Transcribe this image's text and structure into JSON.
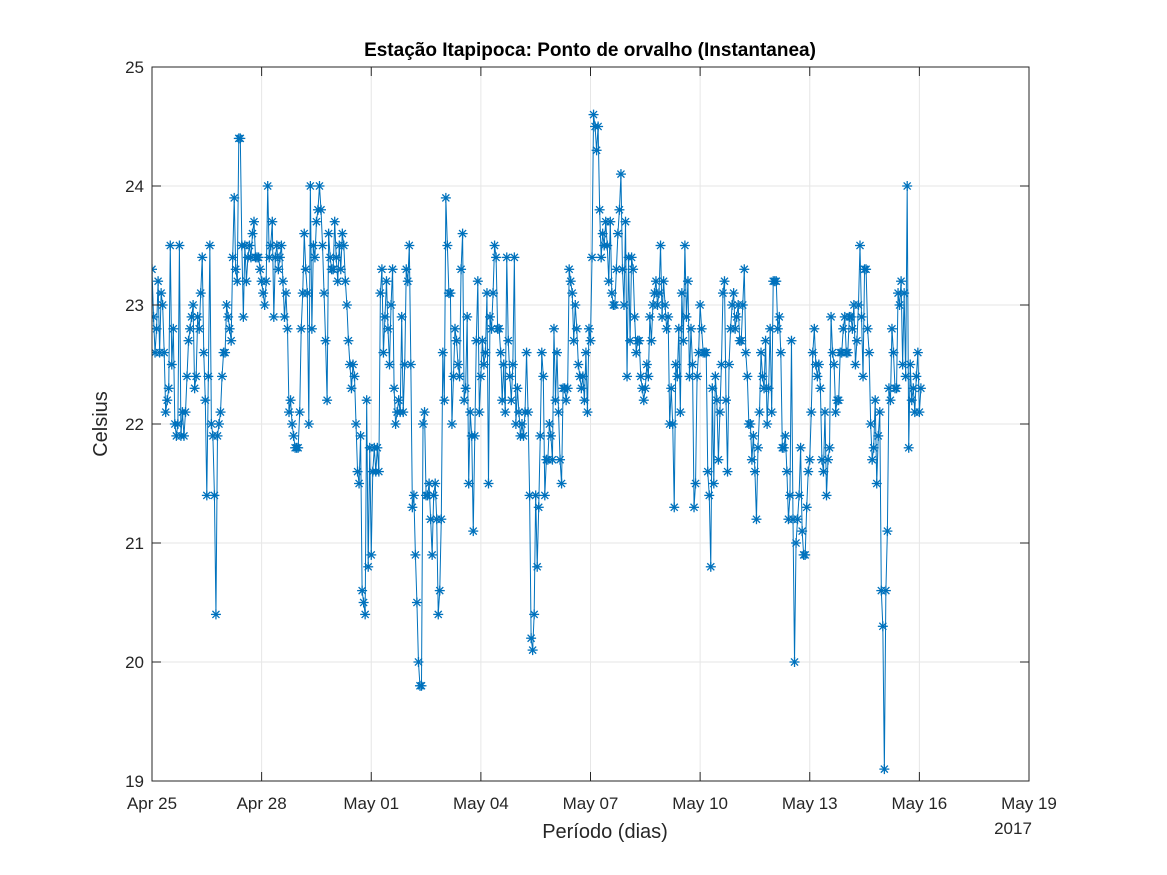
{
  "chart_data": {
    "type": "line",
    "title": "Estação Itapipoca: Ponto de orvalho (Instantanea)",
    "xlabel": "Período (dias)",
    "ylabel": "Celsius",
    "year_label": "2017",
    "xlim": [
      "2017-04-25",
      "2017-05-19"
    ],
    "ylim": [
      19,
      25
    ],
    "x_ticks": [
      "Apr 25",
      "Apr 28",
      "May 01",
      "May 04",
      "May 07",
      "May 10",
      "May 13",
      "May 16",
      "May 19"
    ],
    "x_tick_dates": [
      "2017-04-25",
      "2017-04-28",
      "2017-05-01",
      "2017-05-04",
      "2017-05-07",
      "2017-05-10",
      "2017-05-13",
      "2017-05-16",
      "2017-05-19"
    ],
    "y_ticks": [
      "19",
      "20",
      "21",
      "22",
      "23",
      "24",
      "25"
    ],
    "y_tick_values": [
      19,
      20,
      21,
      22,
      23,
      24,
      25
    ],
    "grid": true,
    "marker": "asterisk",
    "series_color": "#0072BD",
    "series": [
      {
        "start": "2017-04-25 00:00",
        "interval_hours": 1,
        "values": [
          23.3,
          22.9,
          22.6,
          22.8,
          23.2,
          22.6,
          23.1,
          23.0,
          22.6,
          22.1,
          22.2,
          22.3,
          23.5,
          22.5,
          22.8,
          22.0,
          21.9,
          22.0,
          23.5,
          21.9,
          22.1,
          21.9,
          22.1,
          22.4,
          22.7,
          22.8,
          22.9,
          23.0,
          22.3,
          22.4,
          22.9,
          22.8,
          23.1,
          23.4,
          22.6,
          22.2,
          21.4,
          22.4,
          23.5,
          22.0,
          21.9,
          21.4,
          20.4,
          21.9,
          22.0,
          22.1,
          22.4,
          22.6,
          22.6,
          23.0,
          22.9,
          22.8,
          22.7,
          23.4,
          23.9,
          23.3,
          23.2,
          24.4,
          24.4,
          23.5,
          22.9,
          23.5,
          23.2,
          23.4,
          23.5,
          23.4,
          23.6,
          23.7,
          23.4,
          23.4,
          23.4,
          23.3,
          23.2,
          23.1,
          23.0,
          23.2,
          24.0,
          23.4,
          23.5,
          23.7,
          22.9,
          23.4,
          23.5,
          23.3,
          23.4,
          23.5,
          23.2,
          22.9,
          23.1,
          22.8,
          22.1,
          22.2,
          22.0,
          21.9,
          21.8,
          21.8,
          21.8,
          22.1,
          22.8,
          23.1,
          23.6,
          23.3,
          23.1,
          22.0,
          24.0,
          22.8,
          23.5,
          23.4,
          23.7,
          23.8,
          24.0,
          23.8,
          23.5,
          23.1,
          22.7,
          22.2,
          23.6,
          23.4,
          23.3,
          23.3,
          23.7,
          23.4,
          23.2,
          23.5,
          23.3,
          23.6,
          23.5,
          23.2,
          23.0,
          22.7,
          22.5,
          22.3,
          22.5,
          22.4,
          22.0,
          21.6,
          21.5,
          21.9,
          20.6,
          20.5,
          20.4,
          22.2,
          20.8,
          21.8,
          20.9,
          21.6,
          21.8,
          21.6,
          21.8,
          21.6,
          23.1,
          23.3,
          22.6,
          22.9,
          23.2,
          22.8,
          22.5,
          23.0,
          23.3,
          22.3,
          22.0,
          22.1,
          22.2,
          22.1,
          22.9,
          22.1,
          22.5,
          23.3,
          23.2,
          23.5,
          22.5,
          21.3,
          21.4,
          20.9,
          20.5,
          20.0,
          19.8,
          19.8,
          22.0,
          22.1,
          21.4,
          21.4,
          21.5,
          21.2,
          20.9,
          21.4,
          21.5,
          21.2,
          20.4,
          20.6,
          21.2,
          22.6,
          22.2,
          23.9,
          23.5,
          23.1,
          23.1,
          22.0,
          22.4,
          22.8,
          22.7,
          22.5,
          22.4,
          23.3,
          23.6,
          22.2,
          22.3,
          22.9,
          21.5,
          22.1,
          21.9,
          21.1,
          21.9,
          22.7,
          23.2,
          22.1,
          22.4,
          22.7,
          22.5,
          22.6,
          23.1,
          21.5,
          22.9,
          22.8,
          23.1,
          23.5,
          23.4,
          22.8,
          22.8,
          22.6,
          22.2,
          22.5,
          22.1,
          23.4,
          22.7,
          22.4,
          22.2,
          22.5,
          23.4,
          22.0,
          22.3,
          22.1,
          21.9,
          22.0,
          21.9,
          22.1,
          22.6,
          22.1,
          21.4,
          20.2,
          20.1,
          20.4,
          21.4,
          20.8,
          21.3,
          21.9,
          22.6,
          22.4,
          21.4,
          21.7,
          21.7,
          22.0,
          21.9,
          21.7,
          22.8,
          22.2,
          22.6,
          22.1,
          21.7,
          21.5,
          22.3,
          22.3,
          22.2,
          22.3,
          23.3,
          23.2,
          23.1,
          22.7,
          23.0,
          22.8,
          22.5,
          22.4,
          22.3,
          22.4,
          22.2,
          22.6,
          22.1,
          22.8,
          22.7,
          23.4,
          24.6,
          24.5,
          24.3,
          24.5,
          23.8,
          23.4,
          23.6,
          23.5,
          23.7,
          23.5,
          23.2,
          23.7,
          23.1,
          23.0,
          23.0,
          23.3,
          23.6,
          23.8,
          24.1,
          23.3,
          23.0,
          23.7,
          22.4,
          23.4,
          22.7,
          23.4,
          23.3,
          22.9,
          22.6,
          22.7,
          22.7,
          22.4,
          22.3,
          22.2,
          22.3,
          22.5,
          22.4,
          22.9,
          22.7,
          23.0,
          23.1,
          23.2,
          23.0,
          23.1,
          23.5,
          22.9,
          23.2,
          23.0,
          22.8,
          22.9,
          22.0,
          22.3,
          22.0,
          21.3,
          22.5,
          22.4,
          22.8,
          22.1,
          23.1,
          22.7,
          23.5,
          22.9,
          23.2,
          22.4,
          22.8,
          22.5,
          21.3,
          21.5,
          22.4,
          22.6,
          23.0,
          22.8,
          22.6,
          22.6,
          22.6,
          21.6,
          21.4,
          20.8,
          22.3,
          21.5,
          22.4,
          22.2,
          21.7,
          22.1,
          22.5,
          23.1,
          23.2,
          22.2,
          21.6,
          22.5,
          22.8,
          23.0,
          23.1,
          22.8,
          22.9,
          23.0,
          22.7,
          22.7,
          23.0,
          23.3,
          22.6,
          22.4,
          22.0,
          22.0,
          21.7,
          21.9,
          21.6,
          21.2,
          21.8,
          22.1,
          22.6,
          22.4,
          22.3,
          22.7,
          22.0,
          22.3,
          22.8,
          22.1,
          23.2,
          23.2,
          23.2,
          22.8,
          22.9,
          22.6,
          21.8,
          21.8,
          21.9,
          21.6,
          21.2,
          21.4,
          22.7,
          21.2,
          20.0,
          21.0,
          21.2,
          21.4,
          21.8,
          21.1,
          20.9,
          20.9,
          21.3,
          21.6,
          21.7,
          22.1,
          22.6,
          22.8,
          22.5,
          22.4,
          22.5,
          22.3,
          21.7,
          21.6,
          22.1,
          21.4,
          21.7,
          21.8,
          22.9,
          22.6,
          22.5,
          22.1,
          22.2,
          22.2,
          22.6,
          22.6,
          22.8,
          22.9,
          22.6,
          22.6,
          22.9,
          22.9,
          22.8,
          23.0,
          22.5,
          22.7,
          23.0,
          23.5,
          22.9,
          22.4,
          23.3,
          23.3,
          22.8,
          22.6,
          22.0,
          21.7,
          21.8,
          22.2,
          21.5,
          21.9,
          22.1,
          20.6,
          20.3,
          19.1,
          20.6,
          21.1,
          22.3,
          22.2,
          22.8,
          22.6,
          22.3,
          22.3,
          23.1,
          23.0,
          23.2,
          22.5,
          23.1,
          22.4,
          24.0,
          21.8,
          22.5,
          22.2,
          22.3,
          22.1,
          22.4,
          22.6,
          22.1,
          22.3
        ]
      }
    ]
  }
}
